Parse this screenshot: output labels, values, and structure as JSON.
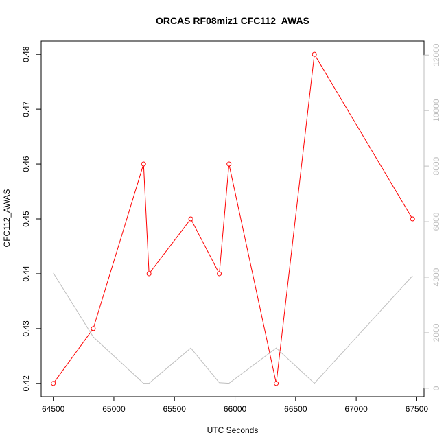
{
  "chart_data": {
    "type": "line",
    "title": "ORCAS RF08miz1 CFC112_AWAS",
    "xlabel": "UTC Seconds",
    "ylabel": "CFC112_AWAS",
    "xlim": [
      64400,
      67560
    ],
    "ylim": [
      0.4176,
      0.4824
    ],
    "y2lim": [
      -300,
      12500
    ],
    "x_ticks": [
      "64500",
      "65000",
      "65500",
      "66000",
      "66500",
      "67000",
      "67500"
    ],
    "y_ticks": [
      "0.42",
      "0.43",
      "0.44",
      "0.45",
      "0.46",
      "0.47",
      "0.48"
    ],
    "y2_ticks": [
      "0",
      "2000",
      "4000",
      "6000",
      "8000",
      "10000",
      "12000"
    ],
    "grid": false,
    "series": [
      {
        "name": "CFC112_AWAS",
        "color": "#ff0000",
        "axis": "left",
        "markers": "open-circle",
        "x": [
          64500,
          64830,
          65245,
          65290,
          65635,
          65870,
          65950,
          66340,
          66655,
          67465
        ],
        "y": [
          0.42,
          0.43,
          0.46,
          0.44,
          0.45,
          0.44,
          0.46,
          0.42,
          0.48,
          0.45
        ]
      },
      {
        "color": "#bebebe",
        "axis": "right",
        "markers": "none",
        "x": [
          64500,
          64830,
          65245,
          65290,
          65635,
          65870,
          65950,
          66340,
          66655,
          67465
        ],
        "y": [
          4150,
          1850,
          180,
          180,
          1450,
          200,
          180,
          1450,
          180,
          4050
        ]
      }
    ]
  }
}
